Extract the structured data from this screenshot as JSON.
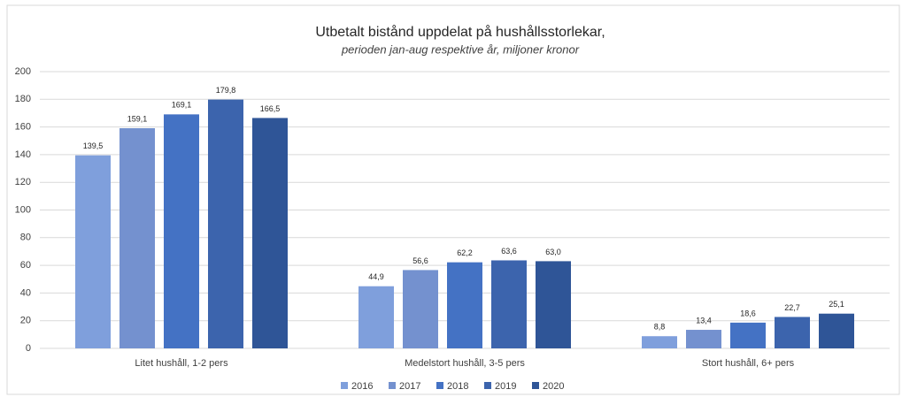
{
  "chart_data": {
    "type": "bar",
    "title": "Utbetalt bistånd uppdelat på hushållsstorlekar,",
    "subtitle": "perioden jan-aug respektive år, miljoner kronor",
    "categories": [
      "Litet hushåll, 1-2 pers",
      "Medelstort hushåll, 3-5 pers",
      "Stort hushåll, 6+ pers"
    ],
    "series": [
      {
        "name": "2016",
        "color": "#7f9fdc",
        "values": [
          139.5,
          44.9,
          8.8
        ],
        "value_labels": [
          "139,5",
          "44,9",
          "8,8"
        ]
      },
      {
        "name": "2017",
        "color": "#7491cf",
        "values": [
          159.1,
          56.6,
          13.4
        ],
        "value_labels": [
          "159,1",
          "56,6",
          "13,4"
        ]
      },
      {
        "name": "2018",
        "color": "#4472c4",
        "values": [
          169.1,
          62.2,
          18.6
        ],
        "value_labels": [
          "169,1",
          "62,2",
          "18,6"
        ]
      },
      {
        "name": "2019",
        "color": "#3c64ad",
        "values": [
          179.8,
          63.6,
          22.7
        ],
        "value_labels": [
          "179,8",
          "63,6",
          "22,7"
        ]
      },
      {
        "name": "2020",
        "color": "#2f5597",
        "values": [
          166.5,
          63.0,
          25.1
        ],
        "value_labels": [
          "166,5",
          "63,0",
          "25,1"
        ]
      }
    ],
    "ylim": [
      0,
      200
    ],
    "yticks": [
      0,
      20,
      40,
      60,
      80,
      100,
      120,
      140,
      160,
      180,
      200
    ],
    "grid": true,
    "legend": "bottom"
  }
}
